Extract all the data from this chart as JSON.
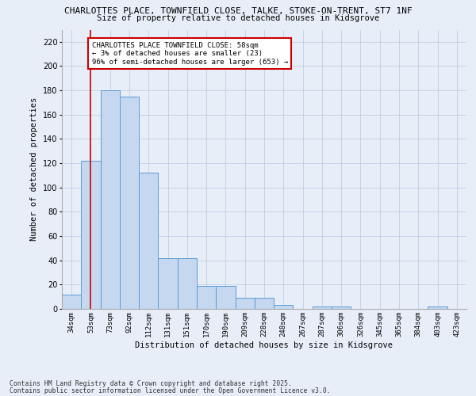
{
  "title1": "CHARLOTTES PLACE, TOWNFIELD CLOSE, TALKE, STOKE-ON-TRENT, ST7 1NF",
  "title2": "Size of property relative to detached houses in Kidsgrove",
  "xlabel": "Distribution of detached houses by size in Kidsgrove",
  "ylabel": "Number of detached properties",
  "categories": [
    "34sqm",
    "53sqm",
    "73sqm",
    "92sqm",
    "112sqm",
    "131sqm",
    "151sqm",
    "170sqm",
    "190sqm",
    "209sqm",
    "228sqm",
    "248sqm",
    "267sqm",
    "287sqm",
    "306sqm",
    "326sqm",
    "345sqm",
    "365sqm",
    "384sqm",
    "403sqm",
    "423sqm"
  ],
  "values": [
    12,
    122,
    180,
    175,
    112,
    42,
    42,
    19,
    19,
    9,
    9,
    3,
    0,
    2,
    2,
    0,
    0,
    0,
    0,
    2,
    0
  ],
  "bar_color": "#c5d8f0",
  "bar_edge_color": "#5b9bd5",
  "vline_x": 1,
  "vline_color": "#cc0000",
  "annotation_text": "CHARLOTTES PLACE TOWNFIELD CLOSE: 58sqm\n← 3% of detached houses are smaller (23)\n96% of semi-detached houses are larger (653) →",
  "annotation_box_color": "#ffffff",
  "annotation_box_edge": "#cc0000",
  "ylim": [
    0,
    230
  ],
  "yticks": [
    0,
    20,
    40,
    60,
    80,
    100,
    120,
    140,
    160,
    180,
    200,
    220
  ],
  "footer1": "Contains HM Land Registry data © Crown copyright and database right 2025.",
  "footer2": "Contains public sector information licensed under the Open Government Licence v3.0.",
  "bg_color": "#e8eef8",
  "plot_bg_color": "#e8eef8"
}
